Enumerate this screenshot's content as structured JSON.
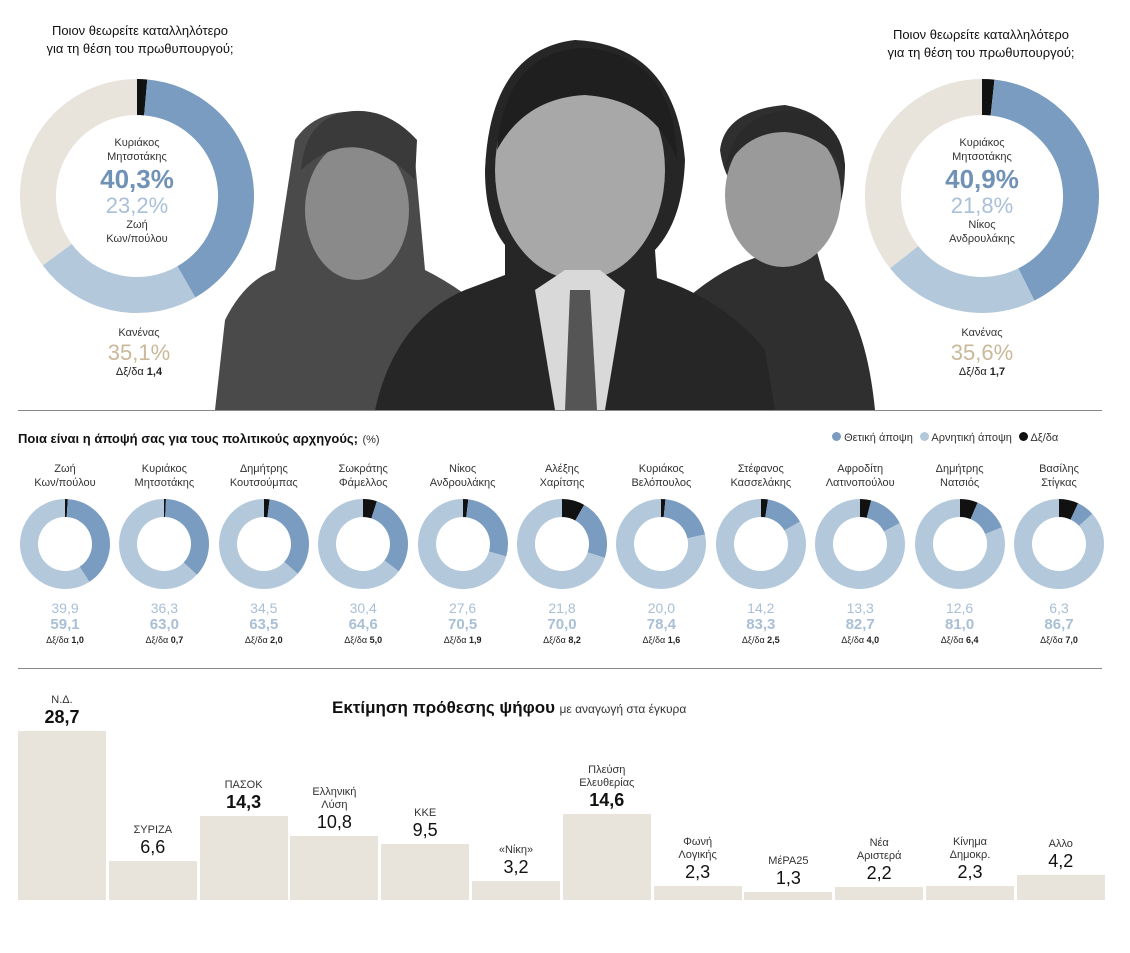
{
  "top": {
    "left": {
      "question_line1": "Ποιον θεωρείτε καταλληλότερο",
      "question_line2": "για τη θέση του πρωθυπουργού;",
      "name1_line1": "Κυριάκος",
      "name1_line2": "Μητσοτάκης",
      "pct1": "40,3%",
      "pct2": "23,2%",
      "name2_line1": "Ζωή",
      "name2_line2": "Κων/πούλου",
      "none_label": "Κανένας",
      "none_pct": "35,1%",
      "dk_label": "Δξ/δα",
      "dk_value": "1,4"
    },
    "right": {
      "question_line1": "Ποιον θεωρείτε καταλληλότερο",
      "question_line2": "για τη θέση του πρωθυπουργού;",
      "name1_line1": "Κυριάκος",
      "name1_line2": "Μητσοτάκης",
      "pct1": "40,9%",
      "pct2": "21,8%",
      "name2_line1": "Νίκος",
      "name2_line2": "Ανδρουλάκης",
      "none_label": "Κανένας",
      "none_pct": "35,6%",
      "dk_label": "Δξ/δα",
      "dk_value": "1,7"
    }
  },
  "leaders_section": {
    "title": "Ποια είναι η άποψή σας για τους πολιτικούς αρχηγούς;",
    "unit": "(%)",
    "legend": [
      "Θετική άποψη",
      "Αρνητική άποψη",
      "Δξ/δα"
    ],
    "dk_prefix": "Δξ/δα"
  },
  "colors": {
    "positive": "#7a9cc0",
    "negative": "#b4c8dc",
    "dk": "#111111",
    "none": "#e8e4dc",
    "bar": "#e8e4dc"
  },
  "vote_section": {
    "title": "Εκτίμηση πρόθεσης ψήφου",
    "subtitle": "με αναγωγή στα έγκυρα"
  },
  "chart_data": [
    {
      "type": "pie",
      "title": "Ποιον θεωρείτε καταλληλότερο για τη θέση του πρωθυπουργού;",
      "categories": [
        "Κυριάκος Μητσοτάκης",
        "Ζωή Κων/πούλου",
        "Κανένας",
        "Δξ/δα"
      ],
      "values": [
        40.3,
        23.2,
        35.1,
        1.4
      ]
    },
    {
      "type": "pie",
      "title": "Ποιον θεωρείτε καταλληλότερο για τη θέση του πρωθυπουργού;",
      "categories": [
        "Κυριάκος Μητσοτάκης",
        "Νίκος Ανδρουλάκης",
        "Κανένας",
        "Δξ/δα"
      ],
      "values": [
        40.9,
        21.8,
        35.6,
        1.7
      ]
    },
    {
      "type": "pie",
      "title": "Ποια είναι η άποψή σας για τους πολιτικούς αρχηγούς;",
      "series_names": [
        "Θετική άποψη",
        "Αρνητική άποψη",
        "Δξ/δα"
      ],
      "leaders": [
        {
          "name1": "Ζωή",
          "name2": "Κων/πούλου",
          "positive": 39.9,
          "negative": 59.1,
          "dk": 1.0,
          "pos_text": "39,9",
          "neg_text": "59,1",
          "dk_text": "1,0"
        },
        {
          "name1": "Κυριάκος",
          "name2": "Μητσοτάκης",
          "positive": 36.3,
          "negative": 63.0,
          "dk": 0.7,
          "pos_text": "36,3",
          "neg_text": "63,0",
          "dk_text": "0,7"
        },
        {
          "name1": "Δημήτρης",
          "name2": "Κουτσούμπας",
          "positive": 34.5,
          "negative": 63.5,
          "dk": 2.0,
          "pos_text": "34,5",
          "neg_text": "63,5",
          "dk_text": "2,0"
        },
        {
          "name1": "Σωκράτης",
          "name2": "Φάμελλος",
          "positive": 30.4,
          "negative": 64.6,
          "dk": 5.0,
          "pos_text": "30,4",
          "neg_text": "64,6",
          "dk_text": "5,0"
        },
        {
          "name1": "Νίκος",
          "name2": "Ανδρουλάκης",
          "positive": 27.6,
          "negative": 70.5,
          "dk": 1.9,
          "pos_text": "27,6",
          "neg_text": "70,5",
          "dk_text": "1,9"
        },
        {
          "name1": "Αλέξης",
          "name2": "Χαρίτσης",
          "positive": 21.8,
          "negative": 70.0,
          "dk": 8.2,
          "pos_text": "21,8",
          "neg_text": "70,0",
          "dk_text": "8,2"
        },
        {
          "name1": "Κυριάκος",
          "name2": "Βελόπουλος",
          "positive": 20.0,
          "negative": 78.4,
          "dk": 1.6,
          "pos_text": "20,0",
          "neg_text": "78,4",
          "dk_text": "1,6"
        },
        {
          "name1": "Στέφανος",
          "name2": "Κασσελάκης",
          "positive": 14.2,
          "negative": 83.3,
          "dk": 2.5,
          "pos_text": "14,2",
          "neg_text": "83,3",
          "dk_text": "2,5"
        },
        {
          "name1": "Αφροδίτη",
          "name2": "Λατινοπούλου",
          "positive": 13.3,
          "negative": 82.7,
          "dk": 4.0,
          "pos_text": "13,3",
          "neg_text": "82,7",
          "dk_text": "4,0"
        },
        {
          "name1": "Δημήτρης",
          "name2": "Νατσιός",
          "positive": 12.6,
          "negative": 81.0,
          "dk": 6.4,
          "pos_text": "12,6",
          "neg_text": "81,0",
          "dk_text": "6,4"
        },
        {
          "name1": "Βασίλης",
          "name2": "Στίγκας",
          "positive": 6.3,
          "negative": 86.7,
          "dk": 7.0,
          "pos_text": "6,3",
          "neg_text": "86,7",
          "dk_text": "7,0"
        }
      ]
    },
    {
      "type": "bar",
      "title": "Εκτίμηση πρόθεσης ψήφου",
      "subtitle": "με αναγωγή στα έγκυρα",
      "categories": [
        "Ν.Δ.",
        "ΣΥΡΙΖΑ",
        "ΠΑΣΟΚ",
        "Ελληνική Λύση",
        "ΚΚΕ",
        "«Νίκη»",
        "Πλεύση Ελευθερίας",
        "Φωνή Λογικής",
        "ΜέΡΑ25",
        "Νέα Αριστερά",
        "Κίνημα Δημοκρ.",
        "Άλλο"
      ],
      "label_lines": [
        [
          "Ν.Δ."
        ],
        [
          "ΣΥΡΙΖΑ"
        ],
        [
          "ΠΑΣΟΚ"
        ],
        [
          "Ελληνική",
          "Λύση"
        ],
        [
          "ΚΚΕ"
        ],
        [
          "«Νίκη»"
        ],
        [
          "Πλεύση",
          "Ελευθερίας"
        ],
        [
          "Φωνή",
          "Λογικής"
        ],
        [
          "ΜέΡΑ25"
        ],
        [
          "Νέα",
          "Αριστερά"
        ],
        [
          "Κίνημα",
          "Δημοκρ."
        ],
        [
          "Αλλο"
        ]
      ],
      "values": [
        28.7,
        6.6,
        14.3,
        10.8,
        9.5,
        3.2,
        14.6,
        2.3,
        1.3,
        2.2,
        2.3,
        4.2
      ],
      "value_texts": [
        "28,7",
        "6,6",
        "14,3",
        "10,8",
        "9,5",
        "3,2",
        "14,6",
        "2,3",
        "1,3",
        "2,2",
        "2,3",
        "4,2"
      ],
      "bold": [
        true,
        false,
        true,
        false,
        false,
        false,
        true,
        false,
        false,
        false,
        false,
        false
      ]
    }
  ]
}
